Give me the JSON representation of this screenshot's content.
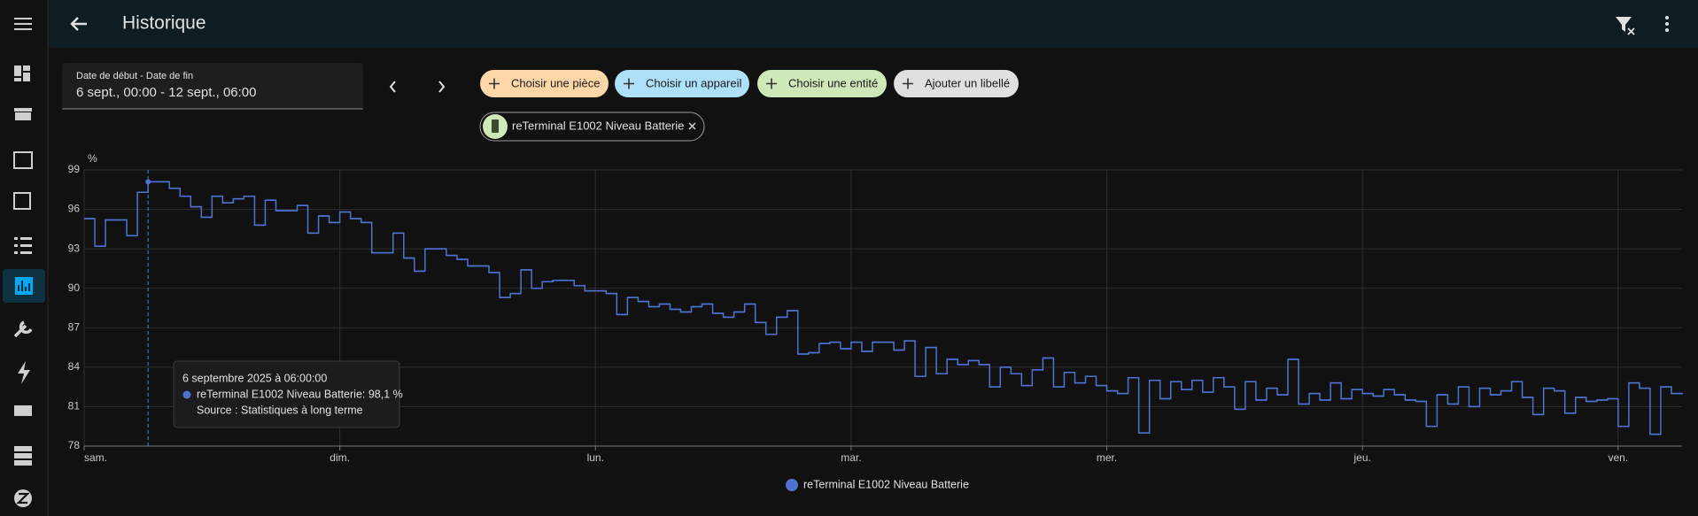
{
  "header": {
    "title": "Historique"
  },
  "date_picker": {
    "label": "Date de début - Date de fin",
    "value": "6 sept., 00:00 - 12 sept., 06:00"
  },
  "chips": [
    "Choisir une pièce",
    "Choisir un appareil",
    "Choisir une entité",
    "Ajouter un libellé"
  ],
  "entity_chip": "reTerminal E1002 Niveau Batterie",
  "chart_data": {
    "type": "line",
    "step": true,
    "ylabel": "%",
    "ylim": [
      78,
      99
    ],
    "yticks": [
      78,
      81,
      84,
      87,
      90,
      93,
      96,
      99
    ],
    "grid": true,
    "xlim": [
      0,
      150
    ],
    "xticks": [
      {
        "value": 0,
        "label": "sam."
      },
      {
        "value": 24,
        "label": "dim."
      },
      {
        "value": 48,
        "label": "lun."
      },
      {
        "value": 72,
        "label": "mar."
      },
      {
        "value": 96,
        "label": "mer."
      },
      {
        "value": 120,
        "label": "jeu."
      },
      {
        "value": 144,
        "label": "ven."
      }
    ],
    "x": [
      0,
      1,
      2,
      3,
      4,
      5,
      6,
      7,
      8,
      9,
      10,
      11,
      12,
      13,
      14,
      15,
      16,
      17,
      18,
      19,
      20,
      21,
      22,
      23,
      24,
      25,
      26,
      27,
      28,
      29,
      30,
      31,
      32,
      33,
      34,
      35,
      36,
      37,
      38,
      39,
      40,
      41,
      42,
      43,
      44,
      45,
      46,
      47,
      48,
      49,
      50,
      51,
      52,
      53,
      54,
      55,
      56,
      57,
      58,
      59,
      60,
      61,
      62,
      63,
      64,
      65,
      66,
      67,
      68,
      69,
      70,
      71,
      72,
      73,
      74,
      75,
      76,
      77,
      78,
      79,
      80,
      81,
      82,
      83,
      84,
      85,
      86,
      87,
      88,
      89,
      90,
      91,
      92,
      93,
      94,
      95,
      96,
      97,
      98,
      99,
      100,
      101,
      102,
      103,
      104,
      105,
      106,
      107,
      108,
      109,
      110,
      111,
      112,
      113,
      114,
      115,
      116,
      117,
      118,
      119,
      120,
      121,
      122,
      123,
      124,
      125,
      126,
      127,
      128,
      129,
      130,
      131,
      132,
      133,
      134,
      135,
      136,
      137,
      138,
      139,
      140,
      141,
      142,
      143,
      144,
      145,
      146,
      147,
      148,
      149,
      150
    ],
    "series": [
      {
        "name": "reTerminal E1002 Niveau Batterie",
        "color": "#4f72d0",
        "values": [
          95.3,
          93.2,
          95.2,
          95.2,
          94.0,
          97.3,
          98.1,
          98.1,
          97.6,
          97.0,
          96.2,
          95.4,
          97.0,
          96.5,
          96.8,
          97.0,
          94.8,
          96.7,
          95.9,
          95.9,
          96.3,
          94.2,
          95.5,
          95.0,
          95.8,
          95.3,
          95.0,
          92.7,
          92.7,
          94.2,
          92.3,
          91.3,
          93.0,
          93.0,
          92.5,
          92.2,
          91.7,
          91.7,
          91.2,
          89.3,
          89.6,
          91.4,
          90.0,
          90.5,
          90.6,
          90.6,
          90.2,
          89.8,
          89.8,
          89.6,
          88.0,
          89.3,
          89.0,
          88.6,
          88.8,
          88.4,
          88.2,
          88.6,
          88.8,
          88.1,
          87.8,
          88.2,
          88.8,
          87.4,
          86.5,
          87.8,
          88.3,
          85.0,
          85.1,
          85.8,
          85.9,
          85.4,
          85.9,
          85.2,
          85.9,
          85.9,
          85.3,
          86.0,
          83.3,
          85.5,
          83.5,
          84.6,
          84.2,
          84.5,
          84.2,
          82.5,
          84.0,
          83.5,
          82.6,
          83.8,
          84.7,
          82.5,
          83.6,
          82.8,
          83.3,
          82.6,
          82.2,
          82.0,
          83.2,
          79.0,
          83.0,
          81.6,
          82.9,
          82.3,
          83.0,
          82.1,
          83.2,
          82.5,
          80.8,
          82.9,
          81.5,
          82.4,
          81.9,
          84.6,
          81.2,
          82.0,
          81.5,
          82.8,
          81.6,
          82.3,
          82.0,
          81.8,
          82.3,
          81.9,
          81.5,
          81.4,
          79.5,
          81.9,
          81.2,
          82.5,
          81.0,
          82.4,
          81.9,
          82.2,
          82.9,
          81.7,
          80.4,
          82.4,
          82.2,
          80.5,
          81.7,
          81.4,
          81.5,
          81.6,
          79.5,
          82.8,
          82.4,
          78.9,
          82.5,
          82.0,
          82.0
        ]
      }
    ],
    "tooltip": {
      "x": 6,
      "title": "6 septembre 2025 à 06:00:00",
      "entry": "reTerminal E1002 Niveau Batterie: 98,1 %",
      "source": "Source : Statistiques à long terme"
    }
  }
}
